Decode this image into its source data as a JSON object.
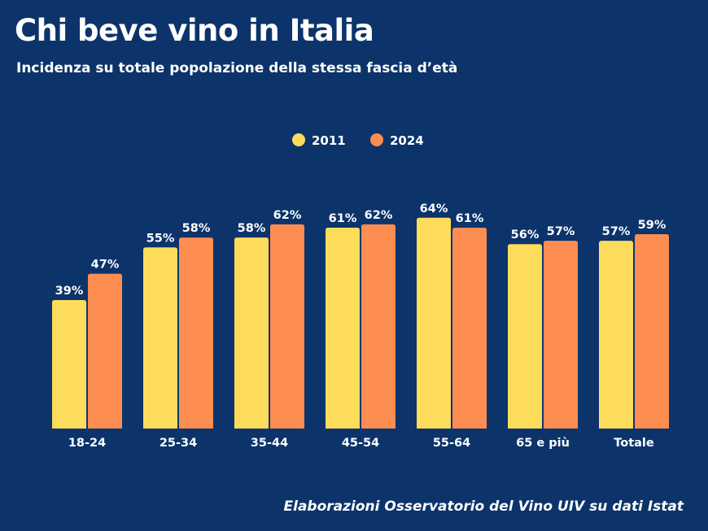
{
  "chart_data": {
    "type": "bar",
    "title": "Chi beve vino in Italia",
    "subtitle": "Incidenza su totale popolazione della stessa fascia d’età",
    "source": "Elaborazioni Osservatorio del Vino UIV su dati Istat",
    "categories": [
      "18-24",
      "25-34",
      "35-44",
      "45-54",
      "55-64",
      "65 e più",
      "Totale"
    ],
    "series": [
      {
        "name": "2011",
        "color": "#fddc5c",
        "values": [
          39,
          55,
          58,
          61,
          64,
          56,
          57
        ]
      },
      {
        "name": "2024",
        "color": "#fd8d50",
        "values": [
          47,
          58,
          62,
          62,
          61,
          57,
          59
        ]
      }
    ],
    "value_suffix": "%",
    "legend_position": "top-center",
    "grid": false,
    "ylim": [
      0,
      70
    ]
  }
}
